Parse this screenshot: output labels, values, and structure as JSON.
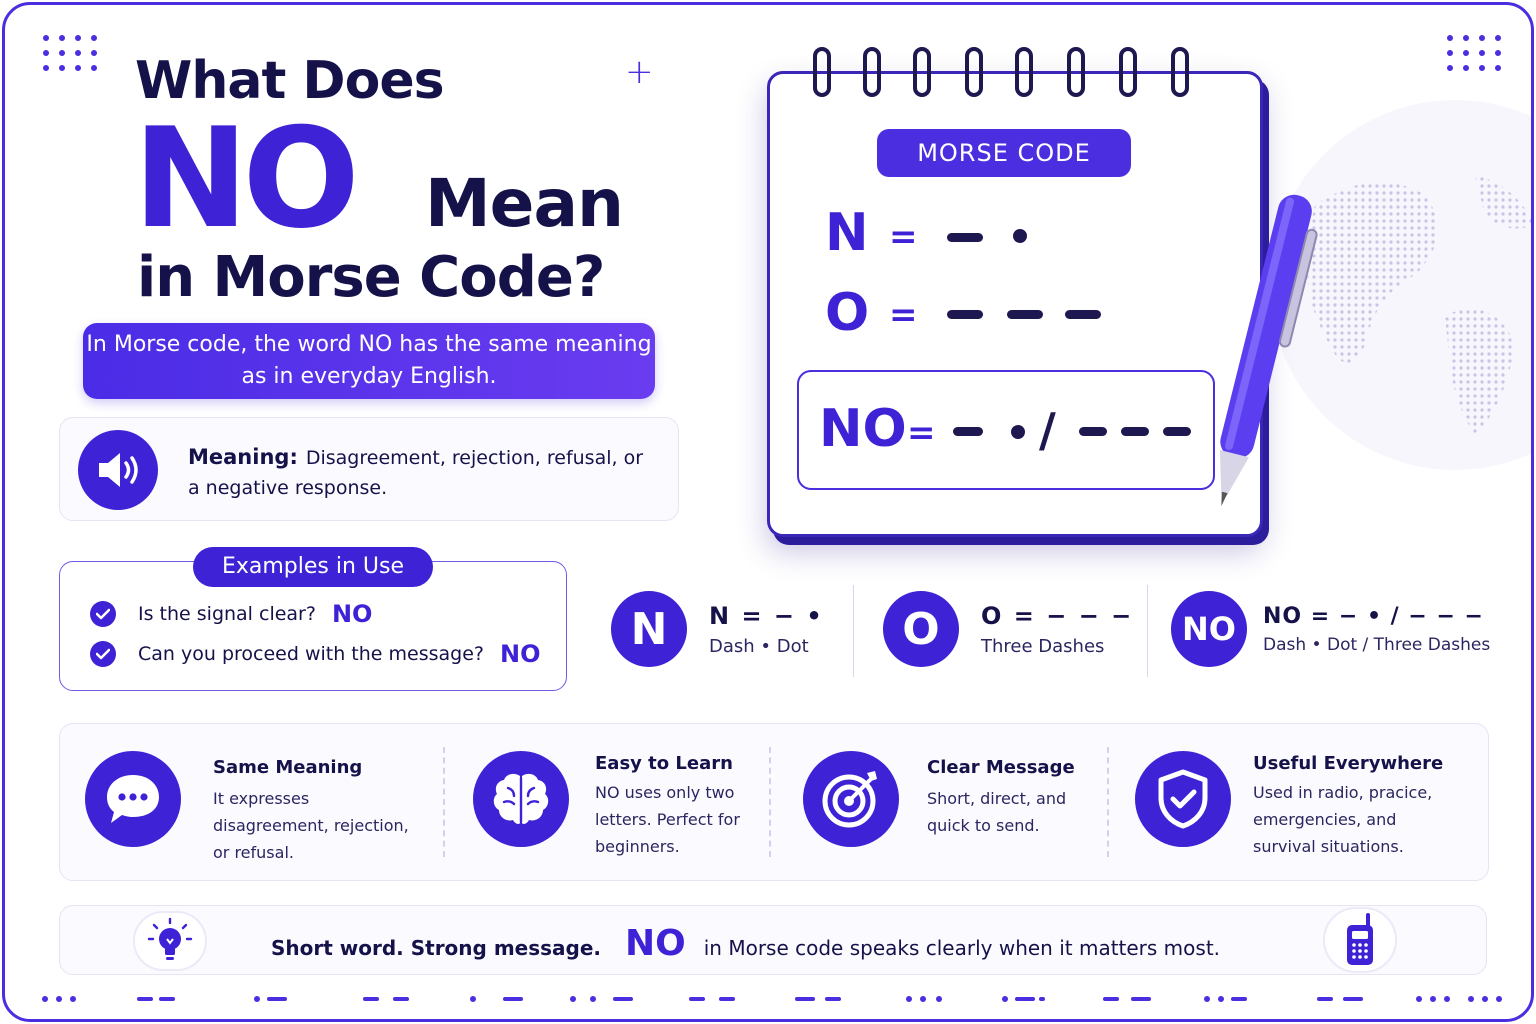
{
  "title": {
    "line1": "What Does",
    "word": "NO",
    "line2": "Mean",
    "line3": "in Morse Code?"
  },
  "intro": "In Morse code, the word NO has the same meaning as in everyday English.",
  "meaning": {
    "label": "Meaning:",
    "text": "Disagreement, rejection, refusal, or a negative response."
  },
  "examples": {
    "heading": "Examples in Use",
    "items": [
      {
        "question": "Is the signal clear?",
        "answer": "NO"
      },
      {
        "question": "Can you proceed with the message?",
        "answer": "NO"
      }
    ]
  },
  "notebook": {
    "header": "MORSE CODE",
    "rows": [
      {
        "letter": "N",
        "eq": "="
      },
      {
        "letter": "O",
        "eq": "="
      }
    ],
    "result": {
      "word": "NO",
      "eq": "=",
      "slash": "/"
    }
  },
  "codes": [
    {
      "badge": "N",
      "code": "N = − •",
      "desc": "Dash • Dot"
    },
    {
      "badge": "O",
      "code": "O = − − −",
      "desc": "Three Dashes"
    },
    {
      "badge": "NO",
      "code": "NO = − • / − − −",
      "desc": "Dash • Dot / Three Dashes"
    }
  ],
  "features": [
    {
      "icon": "speech-bubble-icon",
      "title": "Same Meaning",
      "body": "It expresses disagreement, rejection, or refusal."
    },
    {
      "icon": "brain-icon",
      "title": "Easy to Learn",
      "body": "NO uses only two letters. Perfect for beginners."
    },
    {
      "icon": "target-icon",
      "title": "Clear Message",
      "body": "Short, direct, and quick to send."
    },
    {
      "icon": "shield-check-icon",
      "title": "Useful Everywhere",
      "body": "Used in radio, pracice, emergencies, and survival situations."
    }
  ],
  "bottom": {
    "lead": "Short word. Strong message.",
    "word": "NO",
    "tail": "in Morse code speaks clearly when it matters most."
  },
  "colors": {
    "accent": "#3d22d6",
    "ink": "#15124a",
    "border": "#4a2ee0"
  }
}
